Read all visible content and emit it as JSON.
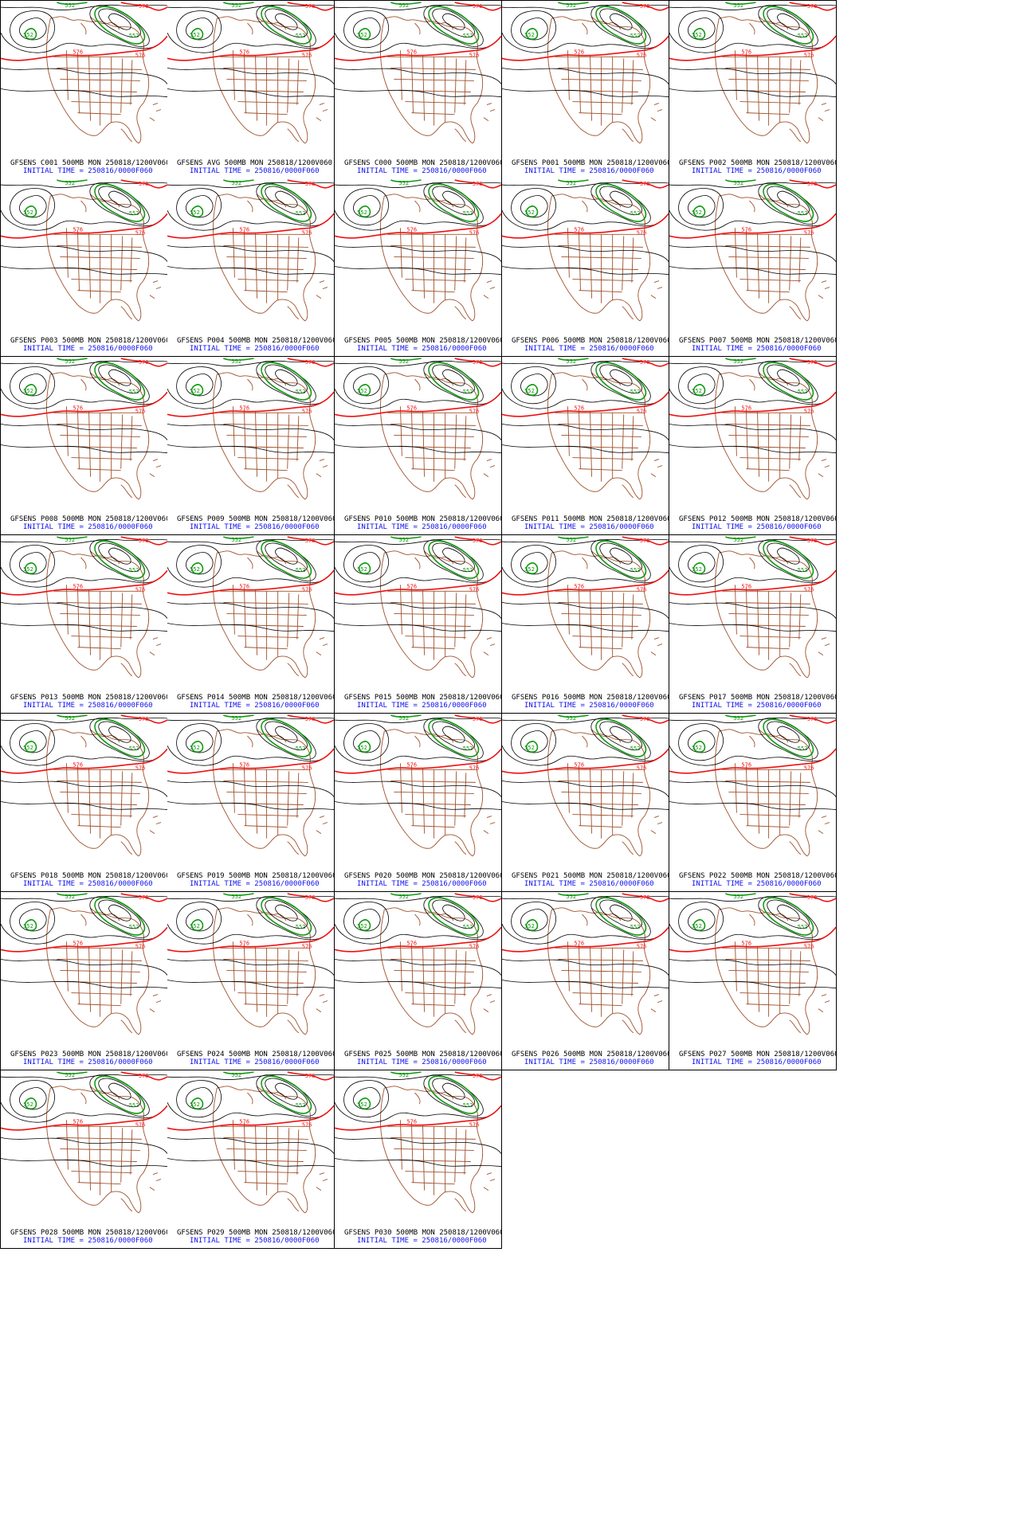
{
  "colors": {
    "coast": "#a0522d",
    "contour": "#000000",
    "contour_576": "#ee1111",
    "contour_552": "#119911",
    "caption_title": "#000000",
    "caption_time": "#1010ee"
  },
  "contour_labels": {
    "high": "576",
    "low": "552"
  },
  "panels": [
    {
      "title": "GFSENS C001 500MB MON 250818/1200V060",
      "time": "INITIAL TIME = 250816/0000F060"
    },
    {
      "title": "GFSENS AVG 500MB MON 250818/1200V060",
      "time": "INITIAL TIME = 250816/0000F060"
    },
    {
      "title": "GFSENS C000 500MB MON 250818/1200V060",
      "time": "INITIAL TIME = 250816/0000F060"
    },
    {
      "title": "GFSENS P001 500MB MON 250818/1200V060",
      "time": "INITIAL TIME = 250816/0000F060"
    },
    {
      "title": "GFSENS P002 500MB MON 250818/1200V060",
      "time": "INITIAL TIME = 250816/0000F060"
    },
    {
      "title": "GFSENS P003 500MB MON 250818/1200V060",
      "time": "INITIAL TIME = 250816/0000F060"
    },
    {
      "title": "GFSENS P004 500MB MON 250818/1200V060",
      "time": "INITIAL TIME = 250816/0000F060"
    },
    {
      "title": "GFSENS P005 500MB MON 250818/1200V060",
      "time": "INITIAL TIME = 250816/0000F060"
    },
    {
      "title": "GFSENS P006 500MB MON 250818/1200V060",
      "time": "INITIAL TIME = 250816/0000F060"
    },
    {
      "title": "GFSENS P007 500MB MON 250818/1200V060",
      "time": "INITIAL TIME = 250816/0000F060"
    },
    {
      "title": "GFSENS P008 500MB MON 250818/1200V060",
      "time": "INITIAL TIME = 250816/0000F060"
    },
    {
      "title": "GFSENS P009 500MB MON 250818/1200V060",
      "time": "INITIAL TIME = 250816/0000F060"
    },
    {
      "title": "GFSENS P010 500MB MON 250818/1200V060",
      "time": "INITIAL TIME = 250816/0000F060"
    },
    {
      "title": "GFSENS P011 500MB MON 250818/1200V060",
      "time": "INITIAL TIME = 250816/0000F060"
    },
    {
      "title": "GFSENS P012 500MB MON 250818/1200V060",
      "time": "INITIAL TIME = 250816/0000F060"
    },
    {
      "title": "GFSENS P013 500MB MON 250818/1200V060",
      "time": "INITIAL TIME = 250816/0000F060"
    },
    {
      "title": "GFSENS P014 500MB MON 250818/1200V060",
      "time": "INITIAL TIME = 250816/0000F060"
    },
    {
      "title": "GFSENS P015 500MB MON 250818/1200V060",
      "time": "INITIAL TIME = 250816/0000F060"
    },
    {
      "title": "GFSENS P016 500MB MON 250818/1200V060",
      "time": "INITIAL TIME = 250816/0000F060"
    },
    {
      "title": "GFSENS P017 500MB MON 250818/1200V060",
      "time": "INITIAL TIME = 250816/0000F060"
    },
    {
      "title": "GFSENS P018 500MB MON 250818/1200V060",
      "time": "INITIAL TIME = 250816/0000F060"
    },
    {
      "title": "GFSENS P019 500MB MON 250818/1200V060",
      "time": "INITIAL TIME = 250816/0000F060"
    },
    {
      "title": "GFSENS P020 500MB MON 250818/1200V060",
      "time": "INITIAL TIME = 250816/0000F060"
    },
    {
      "title": "GFSENS P021 500MB MON 250818/1200V060",
      "time": "INITIAL TIME = 250816/0000F060"
    },
    {
      "title": "GFSENS P022 500MB MON 250818/1200V060",
      "time": "INITIAL TIME = 250816/0000F060"
    },
    {
      "title": "GFSENS P023 500MB MON 250818/1200V060",
      "time": "INITIAL TIME = 250816/0000F060"
    },
    {
      "title": "GFSENS P024 500MB MON 250818/1200V060",
      "time": "INITIAL TIME = 250816/0000F060"
    },
    {
      "title": "GFSENS P025 500MB MON 250818/1200V060",
      "time": "INITIAL TIME = 250816/0000F060"
    },
    {
      "title": "GFSENS P026 500MB MON 250818/1200V060",
      "time": "INITIAL TIME = 250816/0000F060"
    },
    {
      "title": "GFSENS P027 500MB MON 250818/1200V060",
      "time": "INITIAL TIME = 250816/0000F060"
    },
    {
      "title": "GFSENS P028 500MB MON 250818/1200V060",
      "time": "INITIAL TIME = 250816/0000F060"
    },
    {
      "title": "GFSENS P029 500MB MON 250818/1200V060",
      "time": "INITIAL TIME = 250816/0000F060"
    },
    {
      "title": "GFSENS P030 500MB MON 250818/1200V060",
      "time": "INITIAL TIME = 250816/0000F060"
    }
  ]
}
